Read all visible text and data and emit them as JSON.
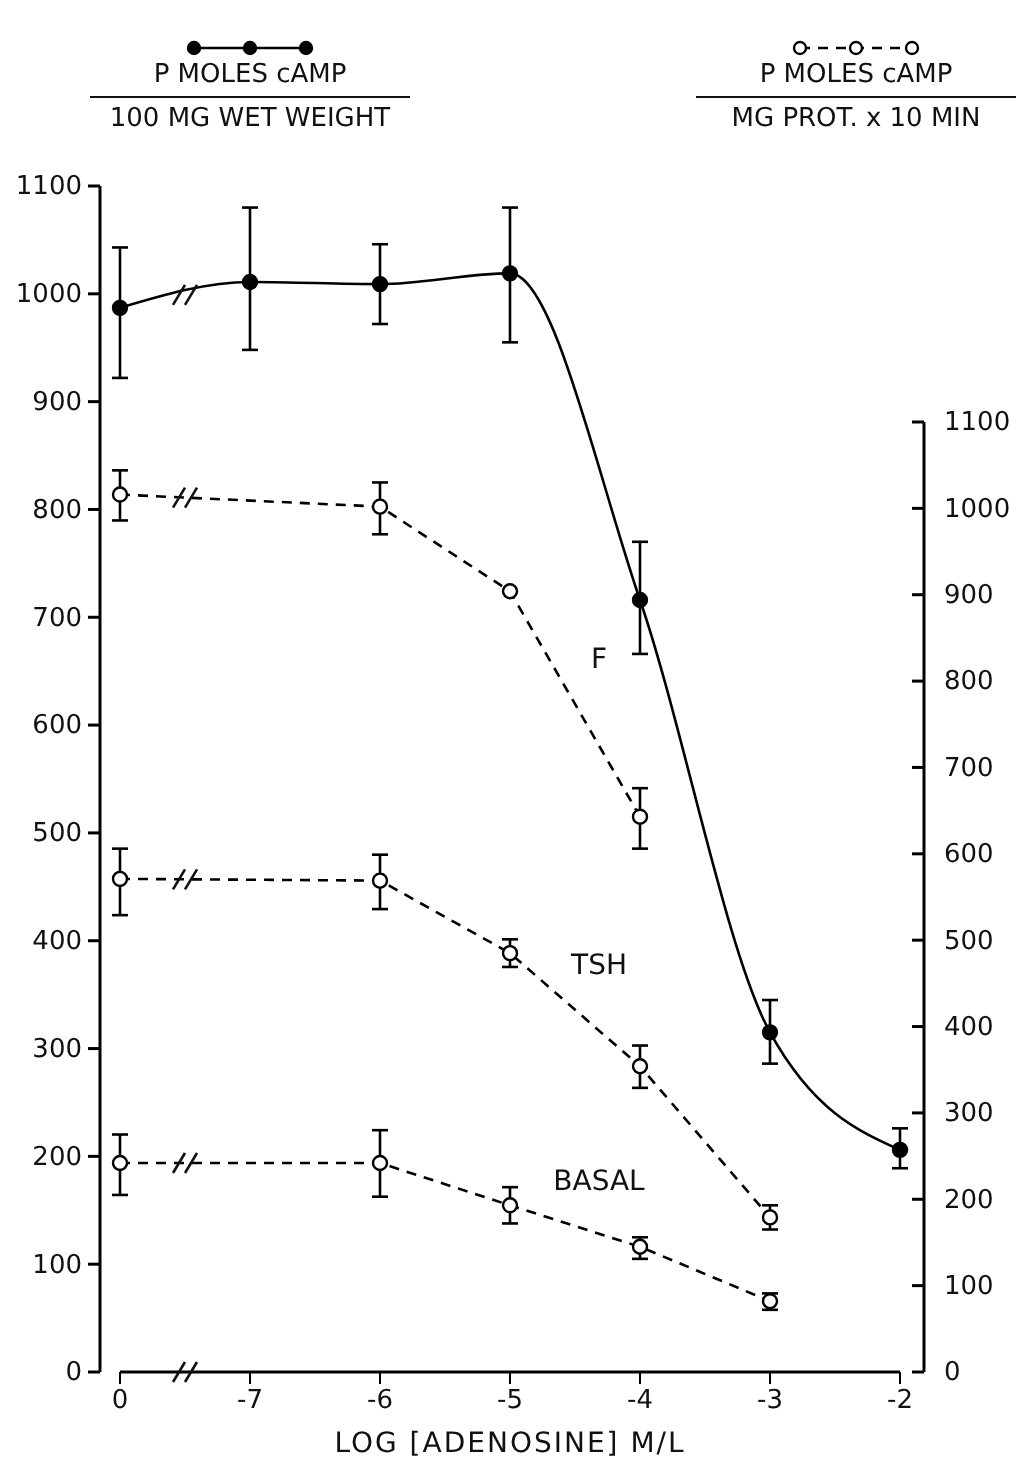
{
  "chart_data": {
    "type": "line",
    "xlabel": "LOG [ADENOSINE] M/L",
    "ylabel": "P MOLES cAMP\n100 MG WET WEIGHT",
    "y2label": "P MOLES cAMP\nMG PROT. x 10 MIN",
    "categories": [
      "0",
      "-7",
      "-6",
      "-5",
      "-4",
      "-3",
      "-2"
    ],
    "ylim": [
      0,
      1100
    ],
    "yticks": [
      0,
      100,
      200,
      300,
      400,
      500,
      600,
      700,
      800,
      900,
      1000,
      1100
    ],
    "y2lim": [
      0,
      1100
    ],
    "y2ticks": [
      0,
      100,
      200,
      300,
      400,
      500,
      600,
      700,
      800,
      900,
      1000,
      1100
    ],
    "grid": false,
    "legend": false,
    "marker": "circle",
    "series": [
      {
        "color": "#000000",
        "line_style": "solid",
        "values": [
          987,
          1011,
          1009,
          1019,
          716,
          315,
          206
        ],
        "errors": [
          [
            922,
            1043
          ],
          [
            948,
            1080
          ],
          [
            972,
            1046
          ],
          [
            955,
            1080
          ],
          [
            666,
            770
          ],
          [
            286,
            345
          ],
          [
            189,
            226
          ]
        ]
      },
      {
        "name": "F",
        "color": "#000000",
        "line_style": "dashed",
        "axis": "y2",
        "values": [
          1016,
          null,
          1002,
          904,
          643,
          null,
          null
        ],
        "errors": [
          [
            986,
            1044
          ],
          null,
          [
            970,
            1030
          ],
          null,
          [
            606,
            676
          ],
          null,
          null
        ]
      },
      {
        "name": "TSH",
        "color": "#000000",
        "line_style": "dashed",
        "axis": "y2",
        "values": [
          571,
          null,
          569,
          485,
          354,
          179,
          null
        ],
        "errors": [
          [
            529,
            606
          ],
          null,
          [
            536,
            599
          ],
          [
            469,
            501
          ],
          [
            329,
            378
          ],
          [
            165,
            193
          ],
          null
        ]
      },
      {
        "name": "BASAL",
        "color": "#000000",
        "line_style": "dashed",
        "axis": "y2",
        "values": [
          242,
          null,
          242,
          193,
          145,
          82,
          null
        ],
        "errors": [
          [
            205,
            275
          ],
          null,
          [
            203,
            280
          ],
          [
            172,
            214
          ],
          [
            131,
            156
          ],
          [
            72,
            91
          ],
          null
        ]
      }
    ]
  }
}
